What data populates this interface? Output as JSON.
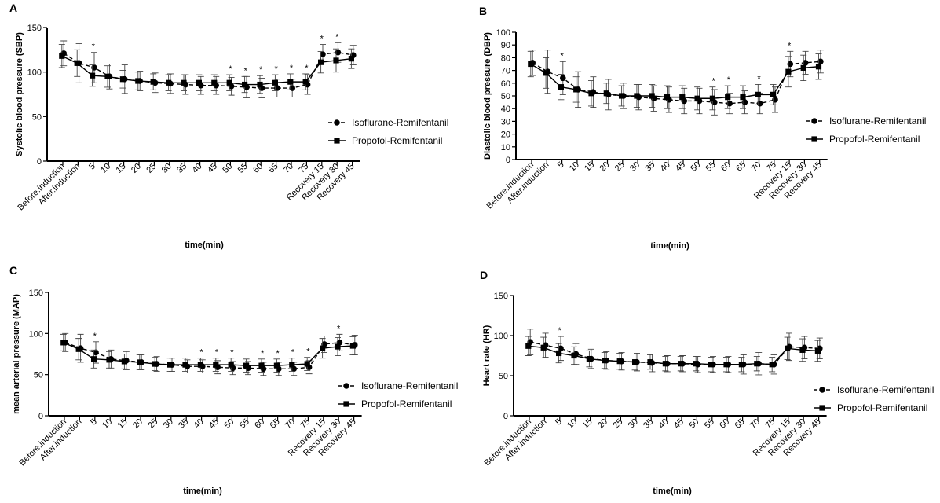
{
  "chart_data": [
    {
      "panel": "A",
      "type": "line",
      "title": "",
      "ylabel": "Systolic blood pressure (SBP)",
      "xlabel": "time(min)",
      "ylim": [
        0,
        150
      ],
      "yticks": [
        0,
        50,
        100,
        150
      ],
      "categories": [
        "Before.induction",
        "After.induction",
        "5",
        "10",
        "15",
        "20",
        "25",
        "30",
        "35",
        "40",
        "45",
        "50",
        "55",
        "60",
        "65",
        "70",
        "75",
        "Recovery 15",
        "Recovery 30",
        "Recovery 45"
      ],
      "significance": [
        "",
        "",
        "*",
        "",
        "",
        "",
        "",
        "",
        "",
        "",
        "",
        "*",
        "*",
        "*",
        "*",
        "*",
        "*",
        "*",
        "*",
        ""
      ],
      "legend_position": "right",
      "series": [
        {
          "name": "Isoflurane-Remifentanil",
          "marker": "circle",
          "dash": true,
          "values": [
            121,
            110,
            105,
            95,
            92,
            90,
            88,
            87,
            86,
            85,
            85,
            84,
            83,
            82,
            82,
            82,
            86,
            120,
            122,
            119
          ],
          "errors": [
            14,
            22,
            17,
            14,
            16,
            11,
            11,
            11,
            11,
            10,
            10,
            10,
            12,
            11,
            10,
            10,
            11,
            11,
            11,
            11
          ]
        },
        {
          "name": "Propofol-Remifentanil",
          "marker": "square",
          "dash": false,
          "values": [
            118,
            110,
            96,
            95,
            92,
            90,
            89,
            88,
            88,
            88,
            88,
            88,
            86,
            86,
            88,
            89,
            89,
            111,
            113,
            115
          ],
          "errors": [
            13,
            15,
            12,
            12,
            10,
            10,
            9,
            9,
            9,
            9,
            9,
            9,
            9,
            10,
            9,
            9,
            9,
            12,
            13,
            11
          ]
        }
      ]
    },
    {
      "panel": "B",
      "type": "line",
      "title": "",
      "ylabel": "Diastolic blood pressure (DBP)",
      "xlabel": "time(min)",
      "ylim": [
        0,
        100
      ],
      "yticks": [
        0,
        10,
        20,
        30,
        40,
        50,
        60,
        70,
        80,
        90,
        100
      ],
      "categories": [
        "Before.induction",
        "After.induction",
        "5",
        "10",
        "15",
        "20",
        "25",
        "30",
        "35",
        "40",
        "45",
        "50",
        "55",
        "60",
        "65",
        "70",
        "75",
        "Recovery 15",
        "Recovery 30",
        "Recovery 45"
      ],
      "significance": [
        "",
        "",
        "*",
        "",
        "",
        "",
        "",
        "",
        "",
        "",
        "",
        "",
        "*",
        "*",
        "",
        "*",
        "",
        "*",
        "",
        ""
      ],
      "legend_position": "right",
      "series": [
        {
          "name": "Isoflurane-Remifentanil",
          "marker": "circle",
          "dash": true,
          "values": [
            76,
            69,
            64,
            55,
            53,
            51,
            50,
            49,
            48,
            47,
            46,
            46,
            45,
            44,
            45,
            44,
            47,
            75,
            76,
            77
          ],
          "errors": [
            10,
            17,
            13,
            14,
            12,
            12,
            10,
            10,
            10,
            10,
            10,
            10,
            10,
            8,
            9,
            8,
            10,
            10,
            9,
            9
          ]
        },
        {
          "name": "Propofol-Remifentanil",
          "marker": "square",
          "dash": false,
          "values": [
            75,
            68,
            57,
            55,
            52,
            52,
            50,
            50,
            50,
            49,
            49,
            48,
            48,
            49,
            49,
            51,
            51,
            69,
            72,
            73
          ],
          "errors": [
            10,
            12,
            10,
            10,
            10,
            8,
            8,
            9,
            9,
            9,
            9,
            9,
            9,
            9,
            9,
            8,
            8,
            12,
            10,
            10
          ]
        }
      ]
    },
    {
      "panel": "C",
      "type": "line",
      "title": "",
      "ylabel": "mean arterial pressure (MAP)",
      "xlabel": "time(min)",
      "ylim": [
        0,
        150
      ],
      "yticks": [
        0,
        50,
        100,
        150
      ],
      "categories": [
        "Before.induction",
        "After.induction",
        "5",
        "10",
        "15",
        "20",
        "25",
        "30",
        "35",
        "40",
        "45",
        "50",
        "55",
        "60",
        "65",
        "70",
        "75",
        "Recovery 15",
        "Recovery 30",
        "Recovery 45"
      ],
      "significance": [
        "",
        "",
        "*",
        "",
        "",
        "",
        "",
        "",
        "",
        "*",
        "*",
        "*",
        "",
        "*",
        "*",
        "*",
        "*",
        "",
        "*",
        ""
      ],
      "legend_position": "right",
      "series": [
        {
          "name": "Isoflurane-Remifentanil",
          "marker": "circle",
          "dash": true,
          "values": [
            89,
            82,
            77,
            69,
            67,
            65,
            63,
            62,
            60,
            60,
            59,
            58,
            58,
            57,
            57,
            57,
            59,
            87,
            89,
            86
          ],
          "errors": [
            11,
            17,
            13,
            11,
            11,
            9,
            9,
            8,
            8,
            8,
            8,
            8,
            8,
            8,
            8,
            8,
            8,
            10,
            10,
            12
          ]
        },
        {
          "name": "Propofol-Remifentanil",
          "marker": "square",
          "dash": false,
          "values": [
            89,
            81,
            69,
            68,
            66,
            65,
            63,
            62,
            62,
            62,
            62,
            62,
            61,
            61,
            61,
            62,
            63,
            82,
            84,
            85
          ],
          "errors": [
            10,
            13,
            11,
            10,
            9,
            9,
            8,
            8,
            8,
            8,
            8,
            8,
            8,
            8,
            8,
            8,
            8,
            12,
            11,
            11
          ]
        }
      ]
    },
    {
      "panel": "D",
      "type": "line",
      "title": "",
      "ylabel": "Heart rate (HR)",
      "xlabel": "time(min)",
      "ylim": [
        0,
        150
      ],
      "yticks": [
        0,
        50,
        100,
        150
      ],
      "categories": [
        "Before.induction",
        "After.induction",
        "5",
        "10",
        "15",
        "20",
        "25",
        "30",
        "35",
        "40",
        "45",
        "50",
        "55",
        "60",
        "65",
        "70",
        "75",
        "Recovery 15",
        "Recovery 30",
        "Recovery 45"
      ],
      "significance": [
        "",
        "",
        "*",
        "",
        "",
        "",
        "",
        "",
        "",
        "",
        "",
        "",
        "",
        "",
        "",
        "",
        "",
        "",
        "",
        ""
      ],
      "legend_position": "right",
      "series": [
        {
          "name": "Isoflurane-Remifentanil",
          "marker": "circle",
          "dash": true,
          "values": [
            92,
            88,
            84,
            77,
            71,
            69,
            68,
            67,
            66,
            65,
            65,
            64,
            64,
            64,
            64,
            65,
            64,
            86,
            85,
            84
          ],
          "errors": [
            16,
            15,
            15,
            13,
            12,
            11,
            11,
            11,
            11,
            10,
            10,
            10,
            10,
            10,
            12,
            14,
            12,
            17,
            14,
            13
          ]
        },
        {
          "name": "Propofol-Remifentanil",
          "marker": "square",
          "dash": false,
          "values": [
            87,
            85,
            78,
            75,
            71,
            69,
            68,
            67,
            67,
            65,
            65,
            65,
            64,
            64,
            64,
            65,
            64,
            84,
            82,
            81
          ],
          "errors": [
            12,
            13,
            12,
            11,
            10,
            10,
            10,
            10,
            9,
            9,
            9,
            9,
            9,
            9,
            9,
            9,
            9,
            14,
            14,
            13
          ]
        }
      ]
    }
  ]
}
